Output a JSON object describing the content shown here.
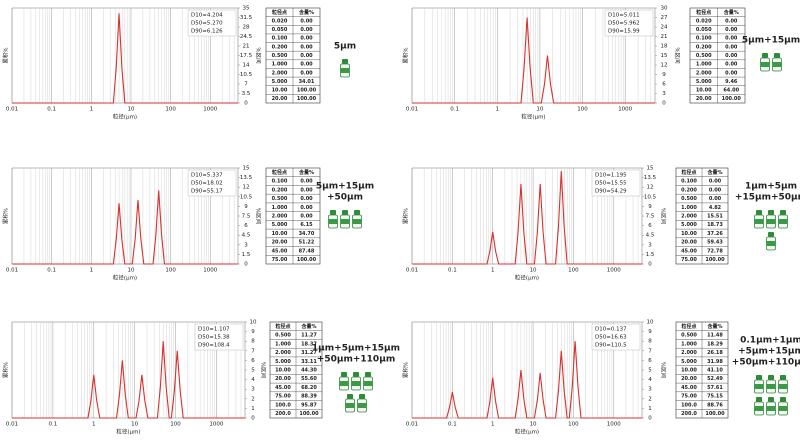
{
  "chart_data": [
    {
      "type": "line",
      "y_label": "累积%",
      "y2_label": "%区间",
      "x_label": "粒径(μm)",
      "log_x": true,
      "grid": true,
      "xlim": [
        0.01,
        5000
      ],
      "xticks": [
        0.01,
        0.1,
        1,
        10,
        100,
        1000
      ],
      "y2lim": [
        0,
        35
      ],
      "y2ticks": [
        0,
        3.5,
        7,
        10.5,
        14,
        17.5,
        21,
        24.5,
        28,
        31.5,
        35
      ],
      "annotations": [
        "D10=4.204",
        "D50=5.270",
        "D90=6.126"
      ],
      "series": [
        {
          "color": "#d9302c",
          "axis": "y2",
          "x": [
            0.01,
            3.6,
            4.25,
            5,
            5.9,
            7,
            5000
          ],
          "values": [
            0,
            0,
            13,
            33,
            13,
            0,
            0
          ]
        }
      ],
      "table": {
        "header": [
          "粒径点",
          "含量%"
        ],
        "rows": [
          [
            "0.020",
            "0.00"
          ],
          [
            "0.050",
            "0.00"
          ],
          [
            "0.100",
            "0.00"
          ],
          [
            "0.200",
            "0.00"
          ],
          [
            "0.500",
            "0.00"
          ],
          [
            "1.000",
            "0.00"
          ],
          [
            "2.000",
            "0.00"
          ],
          [
            "5.000",
            "34.01"
          ],
          [
            "10.00",
            "100.00"
          ],
          [
            "20.00",
            "100.00"
          ]
        ]
      },
      "product_label": [
        "5μm"
      ]
    },
    {
      "type": "line",
      "y_label": "累积%",
      "y2_label": "%区间",
      "x_label": "粒径(μm)",
      "log_x": true,
      "grid": true,
      "xlim": [
        0.01,
        5000
      ],
      "xticks": [
        0.01,
        0.1,
        1,
        10,
        100,
        1000
      ],
      "y2lim": [
        0,
        30
      ],
      "y2ticks": [
        0,
        3,
        6,
        9,
        12,
        15,
        18,
        21,
        24,
        27,
        30
      ],
      "annotations": [
        "D10=5.011",
        "D50=5.962",
        "D90=15.99"
      ],
      "series": [
        {
          "color": "#d9302c",
          "axis": "y2",
          "x": [
            0.01,
            3.6,
            4.25,
            5,
            5.9,
            7,
            10.8,
            12.8,
            15,
            17.7,
            21,
            5000
          ],
          "values": [
            0,
            0,
            11,
            27,
            11,
            0,
            0,
            6,
            15,
            6,
            0,
            0
          ]
        }
      ],
      "table": {
        "header": [
          "粒径点",
          "含量%"
        ],
        "rows": [
          [
            "0.020",
            "0.00"
          ],
          [
            "0.050",
            "0.00"
          ],
          [
            "0.100",
            "0.00"
          ],
          [
            "0.200",
            "0.00"
          ],
          [
            "0.500",
            "0.00"
          ],
          [
            "1.000",
            "0.00"
          ],
          [
            "2.000",
            "0.00"
          ],
          [
            "5.000",
            "9.46"
          ],
          [
            "10.00",
            "64.00"
          ],
          [
            "20.00",
            "100.00"
          ]
        ]
      },
      "product_label": [
        "5μm+15μm"
      ]
    },
    {
      "type": "line",
      "y_label": "累积%",
      "y2_label": "%区间",
      "x_label": "粒径(μm)",
      "log_x": true,
      "grid": true,
      "xlim": [
        0.01,
        5000
      ],
      "xticks": [
        0.01,
        0.1,
        1,
        10,
        100,
        1000
      ],
      "y2lim": [
        0,
        15
      ],
      "y2ticks": [
        0,
        1.5,
        3,
        4.5,
        6,
        7.5,
        9,
        10.5,
        12,
        13.5,
        15
      ],
      "annotations": [
        "D10=5.337",
        "D50=18.02",
        "D90=55.17"
      ],
      "series": [
        {
          "color": "#d9302c",
          "axis": "y2",
          "x": [
            0.01,
            3.6,
            4.25,
            5,
            5.9,
            7,
            10.8,
            12.8,
            15,
            17.7,
            21,
            36,
            42.5,
            50,
            59,
            70,
            5000
          ],
          "values": [
            0,
            0,
            3.8,
            9.5,
            3.8,
            0,
            0,
            4,
            10,
            4,
            0,
            0,
            4.6,
            11.5,
            4.6,
            0,
            0
          ]
        }
      ],
      "table": {
        "header": [
          "粒径点",
          "含量%"
        ],
        "rows": [
          [
            "0.100",
            "0.00"
          ],
          [
            "0.200",
            "0.00"
          ],
          [
            "0.500",
            "0.00"
          ],
          [
            "1.000",
            "0.00"
          ],
          [
            "2.000",
            "0.00"
          ],
          [
            "5.000",
            "6.15"
          ],
          [
            "10.00",
            "34.70"
          ],
          [
            "20.00",
            "51.22"
          ],
          [
            "45.00",
            "87.48"
          ],
          [
            "75.00",
            "100.00"
          ]
        ]
      },
      "product_label": [
        "5μm+15μm",
        "+50μm"
      ]
    },
    {
      "type": "line",
      "y_label": "累积%",
      "y2_label": "%区间",
      "x_label": "粒径(μm)",
      "log_x": true,
      "grid": true,
      "xlim": [
        0.01,
        5000
      ],
      "xticks": [
        0.01,
        0.1,
        1,
        10,
        100,
        1000
      ],
      "y2lim": [
        0,
        15
      ],
      "y2ticks": [
        0,
        1.5,
        3,
        4.5,
        6,
        7.5,
        9,
        10.5,
        12,
        13.5,
        15
      ],
      "annotations": [
        "D10=1.195",
        "D50=15.55",
        "D90=54.29"
      ],
      "series": [
        {
          "color": "#d9302c",
          "axis": "y2",
          "x": [
            0.01,
            0.72,
            0.85,
            1,
            1.18,
            1.4,
            3.6,
            4.25,
            5,
            5.9,
            7,
            10.8,
            12.8,
            15,
            17.7,
            21,
            36,
            42.5,
            50,
            59,
            70,
            5000
          ],
          "values": [
            0,
            0,
            2,
            5,
            2,
            0,
            0,
            5,
            12.5,
            5,
            0,
            0,
            5,
            12.5,
            5,
            0,
            0,
            5.8,
            14.5,
            5.8,
            0,
            0
          ]
        }
      ],
      "table": {
        "header": [
          "粒径点",
          "含量%"
        ],
        "rows": [
          [
            "0.100",
            "0.00"
          ],
          [
            "0.200",
            "0.00"
          ],
          [
            "0.500",
            "0.00"
          ],
          [
            "1.000",
            "4.82"
          ],
          [
            "2.000",
            "15.51"
          ],
          [
            "5.000",
            "18.73"
          ],
          [
            "10.00",
            "37.26"
          ],
          [
            "20.00",
            "59.43"
          ],
          [
            "45.00",
            "72.78"
          ],
          [
            "75.00",
            "100.00"
          ]
        ]
      },
      "product_label": [
        "1μm+5μm",
        "+15μm+50μm"
      ]
    },
    {
      "type": "line",
      "y_label": "累积%",
      "y2_label": "%区间",
      "x_label": "粒径(μm)",
      "log_x": true,
      "grid": true,
      "xlim": [
        0.01,
        5000
      ],
      "xticks": [
        0.01,
        0.1,
        1,
        10,
        100,
        1000
      ],
      "y2lim": [
        0,
        10
      ],
      "y2ticks": [
        0,
        1,
        2,
        3,
        4,
        5,
        6,
        7,
        8,
        9,
        10
      ],
      "annotations": [
        "D10=1.107",
        "D50=15.38",
        "D90=108.4"
      ],
      "series": [
        {
          "color": "#d9302c",
          "axis": "y2",
          "x": [
            0.01,
            0.72,
            0.85,
            1,
            1.18,
            1.4,
            3.6,
            4.25,
            5,
            5.9,
            7,
            10.8,
            12.8,
            15,
            17.7,
            21,
            36,
            42.5,
            50,
            59,
            70,
            79,
            93.5,
            110,
            130,
            154,
            5000
          ],
          "values": [
            0,
            0,
            1.8,
            4.5,
            1.8,
            0,
            0,
            2.4,
            6,
            2.4,
            0,
            0,
            1.8,
            4.5,
            1.8,
            0,
            0,
            3.2,
            8,
            3.2,
            0,
            0,
            2.8,
            7,
            2.8,
            0,
            0
          ]
        }
      ],
      "table": {
        "header": [
          "粒径点",
          "含量%"
        ],
        "rows": [
          [
            "0.500",
            "11.27"
          ],
          [
            "1.000",
            "18.37"
          ],
          [
            "2.000",
            "31.27"
          ],
          [
            "5.000",
            "33.11"
          ],
          [
            "10.00",
            "44.30"
          ],
          [
            "20.00",
            "55.60"
          ],
          [
            "45.00",
            "68.20"
          ],
          [
            "75.00",
            "88.39"
          ],
          [
            "100.0",
            "95.87"
          ],
          [
            "200.0",
            "100.00"
          ]
        ]
      },
      "product_label": [
        "1μm+5μm+15μm",
        "+50μm+110μm"
      ]
    },
    {
      "type": "line",
      "y_label": "累积%",
      "y2_label": "%区间",
      "x_label": "粒径(μm)",
      "log_x": true,
      "grid": true,
      "xlim": [
        0.01,
        5000
      ],
      "xticks": [
        0.01,
        0.1,
        1,
        10,
        100,
        1000
      ],
      "y2lim": [
        0,
        10
      ],
      "y2ticks": [
        0,
        1,
        2,
        3,
        4,
        5,
        6,
        7,
        8,
        9,
        10
      ],
      "annotations": [
        "D10=0.137",
        "D50=16.63",
        "D90=110.5"
      ],
      "series": [
        {
          "color": "#d9302c",
          "axis": "y2",
          "x": [
            0.01,
            0.072,
            0.085,
            0.1,
            0.118,
            0.14,
            0.72,
            0.85,
            1,
            1.18,
            1.4,
            3.6,
            4.25,
            5,
            5.9,
            7,
            10.8,
            12.8,
            15,
            17.7,
            21,
            36,
            42.5,
            50,
            59,
            70,
            79,
            93.5,
            110,
            130,
            154,
            5000
          ],
          "values": [
            0,
            0,
            1.1,
            2.7,
            1.1,
            0,
            0,
            1.7,
            4.2,
            1.7,
            0,
            0,
            2,
            5,
            2,
            0,
            0,
            1.9,
            4.7,
            1.9,
            0,
            0,
            2.8,
            7,
            2.8,
            0,
            0,
            3.2,
            8,
            3.2,
            0,
            0
          ]
        }
      ],
      "table": {
        "header": [
          "粒径点",
          "含量%"
        ],
        "rows": [
          [
            "0.500",
            "11.48"
          ],
          [
            "1.000",
            "18.29"
          ],
          [
            "2.000",
            "26.18"
          ],
          [
            "5.000",
            "31.98"
          ],
          [
            "10.00",
            "41.10"
          ],
          [
            "20.00",
            "52.49"
          ],
          [
            "45.00",
            "57.61"
          ],
          [
            "75.00",
            "75.15"
          ],
          [
            "100.0",
            "88.76"
          ],
          [
            "200.0",
            "100.00"
          ]
        ]
      },
      "product_label": [
        "0.1μm+1μm",
        "+5μm+15μm",
        "+50μm+110μm"
      ]
    }
  ]
}
